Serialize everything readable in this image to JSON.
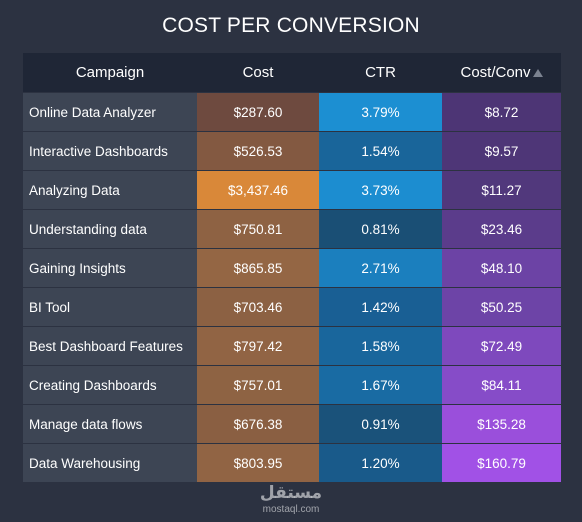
{
  "title": "COST PER CONVERSION",
  "columns": {
    "campaign": "Campaign",
    "cost": "Cost",
    "ctr": "CTR",
    "cost_conv": "Cost/Conv",
    "sort_icon": "sort-ascending-icon"
  },
  "rows": [
    {
      "campaign": "Online Data Analyzer",
      "cost": "$287.60",
      "ctr": "3.79%",
      "cost_conv": "$8.72",
      "cost_color": "#6e4a3f",
      "ctr_color": "#1c8fd2",
      "conv_color": "#4d3575"
    },
    {
      "campaign": "Interactive Dashboards",
      "cost": "$526.53",
      "ctr": "1.54%",
      "cost_conv": "$9.57",
      "cost_color": "#835941",
      "ctr_color": "#19659a",
      "conv_color": "#4e3677"
    },
    {
      "campaign": "Analyzing Data",
      "cost": "$3,437.46",
      "ctr": "3.73%",
      "cost_conv": "$11.27",
      "cost_color": "#d98839",
      "ctr_color": "#1c8dd0",
      "conv_color": "#51387c"
    },
    {
      "campaign": "Understanding data",
      "cost": "$750.81",
      "ctr": "0.81%",
      "cost_conv": "$23.46",
      "cost_color": "#8e6243",
      "ctr_color": "#1a4f75",
      "conv_color": "#5b3c8b"
    },
    {
      "campaign": "Gaining Insights",
      "cost": "$865.85",
      "ctr": "2.71%",
      "cost_conv": "$48.10",
      "cost_color": "#946644",
      "ctr_color": "#1b7fbe",
      "conv_color": "#6c43a5"
    },
    {
      "campaign": "BI Tool",
      "cost": "$703.46",
      "ctr": "1.42%",
      "cost_conv": "$50.25",
      "cost_color": "#8c6143",
      "ctr_color": "#195f94",
      "conv_color": "#6d44a7"
    },
    {
      "campaign": "Best Dashboard Features",
      "cost": "$797.42",
      "ctr": "1.58%",
      "cost_conv": "$72.49",
      "cost_color": "#916444",
      "ctr_color": "#19669c",
      "conv_color": "#7e49bd"
    },
    {
      "campaign": "Creating Dashboards",
      "cost": "$757.01",
      "ctr": "1.67%",
      "cost_conv": "$84.11",
      "cost_color": "#8e6343",
      "ctr_color": "#196ba3",
      "conv_color": "#864cc8"
    },
    {
      "campaign": "Manage data flows",
      "cost": "$676.38",
      "ctr": "0.91%",
      "cost_conv": "$135.28",
      "cost_color": "#8a5f42",
      "ctr_color": "#1a527a",
      "conv_color": "#9a4fdb"
    },
    {
      "campaign": "Data Warehousing",
      "cost": "$803.95",
      "ctr": "1.20%",
      "cost_conv": "$160.79",
      "cost_color": "#916444",
      "ctr_color": "#195a8a",
      "conv_color": "#a151e6"
    }
  ],
  "watermark": {
    "logo": "مستقل",
    "url": "mostaql.com"
  }
}
